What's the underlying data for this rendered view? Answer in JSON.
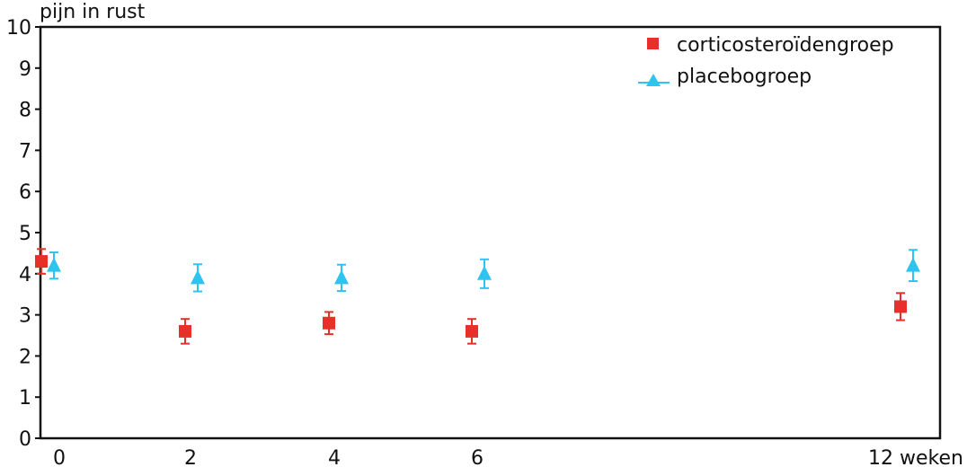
{
  "chart_data": {
    "type": "scatter",
    "title": "",
    "ylabel": "pijn in rust",
    "xlabel": "weken",
    "ylim": [
      0,
      10
    ],
    "yticks": [
      "0",
      "1",
      "2",
      "3",
      "4",
      "5",
      "6",
      "7",
      "8",
      "9",
      "10"
    ],
    "xticks": [
      {
        "value": 0,
        "label": "0"
      },
      {
        "value": 2,
        "label": "2"
      },
      {
        "value": 4,
        "label": "4"
      },
      {
        "value": 6,
        "label": "6"
      },
      {
        "value": 12,
        "label": "12 weken"
      }
    ],
    "grid": false,
    "legend_position": "top-right",
    "series": [
      {
        "name": "corticosteroïdengroep",
        "marker": "square",
        "color": "#e8302a",
        "points": [
          {
            "x": 0,
            "y": 4.3,
            "err": 0.3
          },
          {
            "x": 2,
            "y": 2.6,
            "err": 0.3
          },
          {
            "x": 4,
            "y": 2.8,
            "err": 0.27
          },
          {
            "x": 6,
            "y": 2.6,
            "err": 0.3
          },
          {
            "x": 12,
            "y": 3.2,
            "err": 0.33
          }
        ]
      },
      {
        "name": "placebogroep",
        "marker": "triangle",
        "color": "#2ec4ef",
        "points": [
          {
            "x": 0,
            "y": 4.2,
            "err": 0.32
          },
          {
            "x": 2,
            "y": 3.9,
            "err": 0.33
          },
          {
            "x": 4,
            "y": 3.9,
            "err": 0.32
          },
          {
            "x": 6,
            "y": 4.0,
            "err": 0.35
          },
          {
            "x": 12,
            "y": 4.2,
            "err": 0.38
          }
        ]
      }
    ]
  }
}
